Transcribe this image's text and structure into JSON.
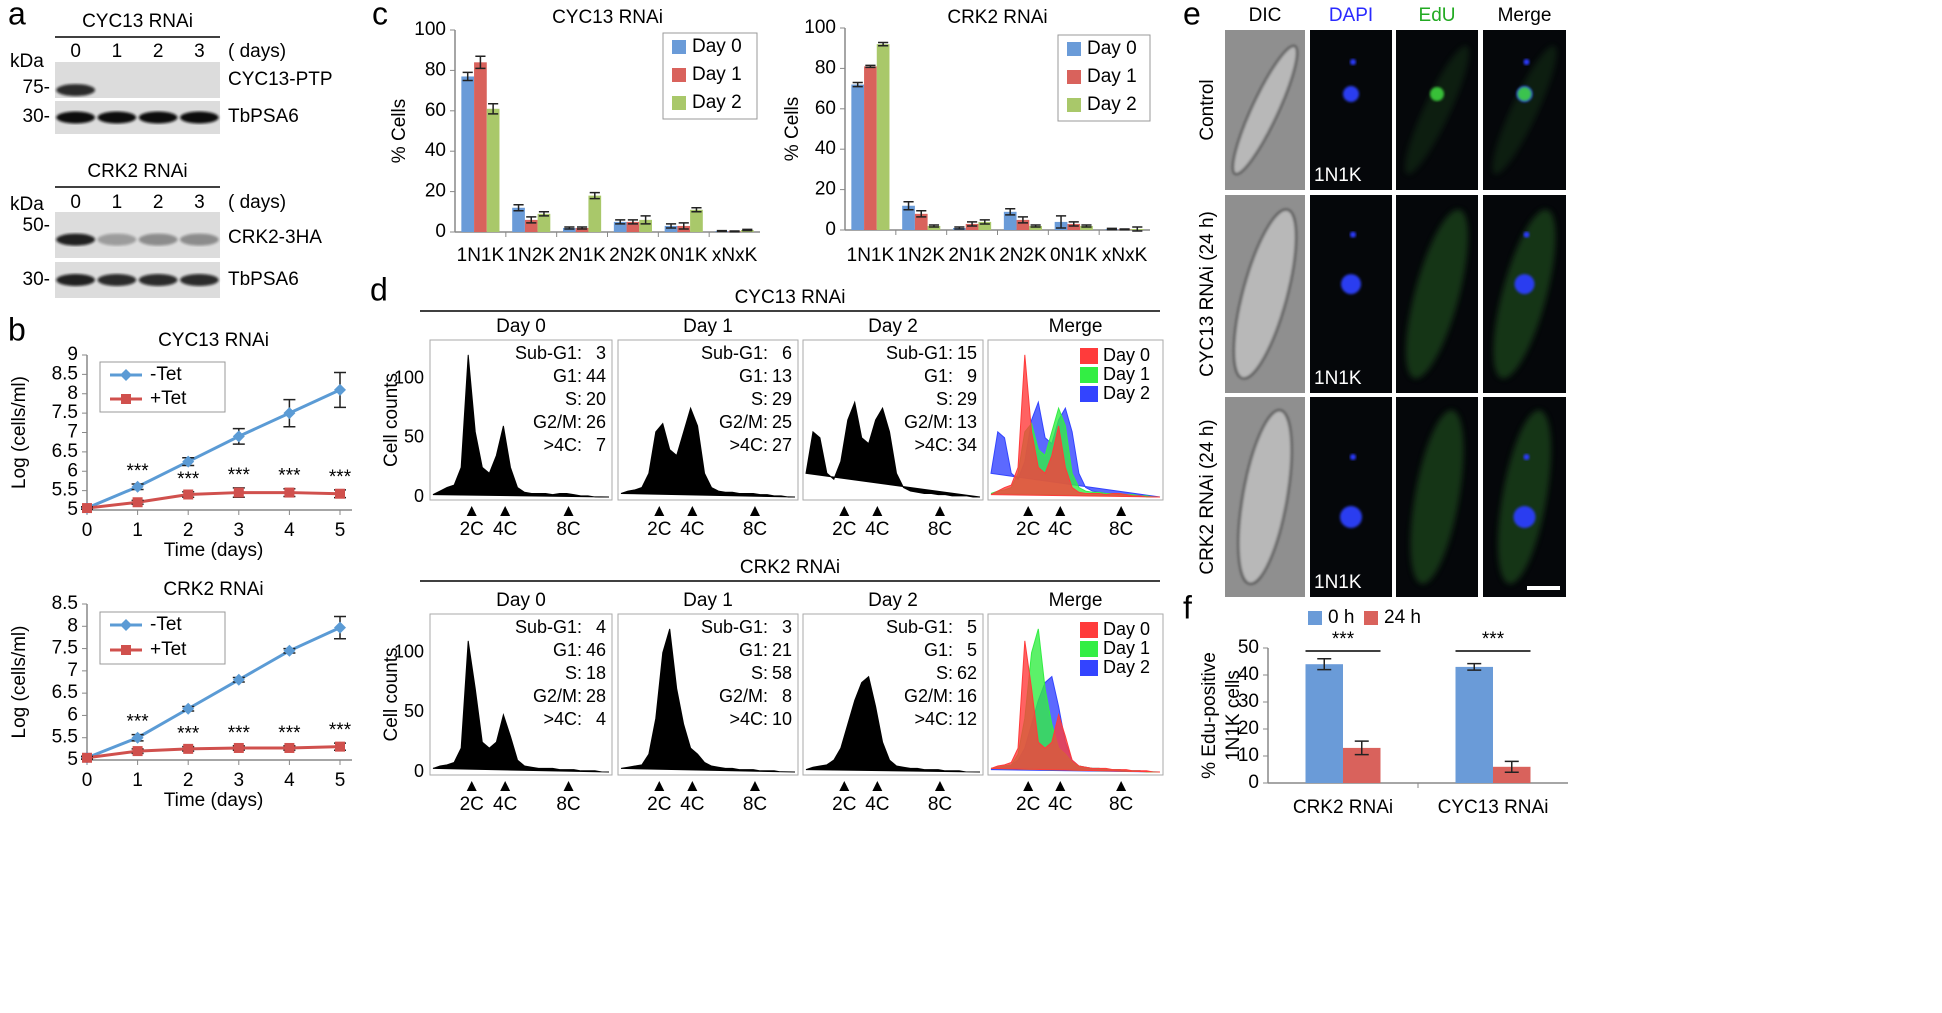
{
  "panel_letters": [
    "a",
    "b",
    "c",
    "d",
    "e",
    "f"
  ],
  "blots": [
    {
      "title": "CYC13 RNAi",
      "kda": "kDa",
      "days": [
        0,
        1,
        2,
        3
      ],
      "days_unit": "( days)",
      "rows": [
        {
          "marker": "75-",
          "label": "CYC13-PTP"
        },
        {
          "marker": "30-",
          "label": "TbPSA6"
        }
      ]
    },
    {
      "title": "CRK2 RNAi",
      "kda": "kDa",
      "days": [
        0,
        1,
        2,
        3
      ],
      "days_unit": "( days)",
      "rows": [
        {
          "marker": "50-",
          "label": "CRK2-3HA"
        },
        {
          "marker": "30-",
          "label": "TbPSA6"
        }
      ]
    }
  ],
  "micrographs": {
    "columns": [
      "DIC",
      "DAPI",
      "EdU",
      "Merge"
    ],
    "rows": [
      "Control",
      "CYC13 RNAi (24 h)",
      "CRK2 RNAi (24 h)"
    ],
    "cell_label": "1N1K"
  },
  "chart_data": [
    {
      "type": "line",
      "title": "CYC13 RNAi",
      "xlabel": "Time (days)",
      "ylabel": "Log (cells/ml)",
      "x": [
        0,
        1,
        2,
        3,
        4,
        5
      ],
      "xlim": [
        0,
        5
      ],
      "xticks": [
        0,
        1,
        2,
        3,
        4,
        5
      ],
      "ylim": [
        5,
        9
      ],
      "yticks": [
        5,
        5.5,
        6,
        6.5,
        7,
        7.5,
        8,
        8.5,
        9
      ],
      "legend": "upper left",
      "series": [
        {
          "name": "-Tet",
          "color": "#5b9bd5",
          "marker": "diamond",
          "values": [
            5.05,
            5.6,
            6.25,
            6.9,
            7.5,
            8.1
          ],
          "errors": [
            0.03,
            0.07,
            0.1,
            0.2,
            0.35,
            0.45
          ]
        },
        {
          "name": "+Tet",
          "color": "#d0504d",
          "marker": "square",
          "values": [
            5.05,
            5.2,
            5.4,
            5.45,
            5.45,
            5.42
          ],
          "errors": [
            0.03,
            0.05,
            0.07,
            0.12,
            0.1,
            0.1
          ]
        }
      ],
      "annotations": [
        {
          "x": 1,
          "text": "***"
        },
        {
          "x": 2,
          "text": "***"
        },
        {
          "x": 3,
          "text": "***"
        },
        {
          "x": 4,
          "text": "***"
        },
        {
          "x": 5,
          "text": "***"
        }
      ]
    },
    {
      "type": "line",
      "title": "CRK2 RNAi",
      "xlabel": "Time (days)",
      "ylabel": "Log (cells/ml)",
      "x": [
        0,
        1,
        2,
        3,
        4,
        5
      ],
      "xlim": [
        0,
        5
      ],
      "xticks": [
        0,
        1,
        2,
        3,
        4,
        5
      ],
      "ylim": [
        5,
        8.5
      ],
      "yticks": [
        5,
        5.5,
        6,
        6.5,
        7,
        7.5,
        8,
        8.5
      ],
      "legend": "upper left",
      "series": [
        {
          "name": "-Tet",
          "color": "#5b9bd5",
          "marker": "diamond",
          "values": [
            5.05,
            5.5,
            6.15,
            6.8,
            7.45,
            7.97
          ],
          "errors": [
            0.03,
            0.07,
            0.05,
            0.05,
            0.05,
            0.25
          ]
        },
        {
          "name": "+Tet",
          "color": "#d0504d",
          "marker": "square",
          "values": [
            5.05,
            5.2,
            5.25,
            5.27,
            5.27,
            5.3
          ],
          "errors": [
            0.03,
            0.05,
            0.05,
            0.05,
            0.05,
            0.08
          ]
        }
      ],
      "annotations": [
        {
          "x": 1,
          "text": "***"
        },
        {
          "x": 2,
          "text": "***"
        },
        {
          "x": 3,
          "text": "***"
        },
        {
          "x": 4,
          "text": "***"
        },
        {
          "x": 5,
          "text": "***"
        }
      ]
    },
    {
      "type": "bar",
      "title": "CYC13 RNAi",
      "ylabel": "% Cells",
      "categories": [
        "1N1K",
        "1N2K",
        "2N1K",
        "2N2K",
        "0N1K",
        "xNxK"
      ],
      "ylim": [
        0,
        100
      ],
      "yticks": [
        0,
        20,
        40,
        60,
        80,
        100
      ],
      "legend": "upper right",
      "series": [
        {
          "name": "Day 0",
          "color": "#6a9bd8",
          "values": [
            77,
            12,
            2,
            5,
            3,
            0.5
          ],
          "errors": [
            2,
            1.5,
            0.5,
            1,
            1,
            0.2
          ]
        },
        {
          "name": "Day 1",
          "color": "#d9625c",
          "values": [
            84,
            6,
            2,
            5,
            3,
            0.3
          ],
          "errors": [
            3,
            1.5,
            0.5,
            1,
            1.5,
            0.2
          ]
        },
        {
          "name": "Day 2",
          "color": "#a9c86a",
          "values": [
            61,
            9,
            18,
            6,
            11,
            1
          ],
          "errors": [
            2.5,
            1,
            1.5,
            2,
            1,
            0.3
          ]
        }
      ]
    },
    {
      "type": "bar",
      "title": "CRK2 RNAi",
      "ylabel": "% Cells",
      "categories": [
        "1N1K",
        "1N2K",
        "2N1K",
        "2N2K",
        "0N1K",
        "xNxK"
      ],
      "ylim": [
        0,
        100
      ],
      "yticks": [
        0,
        20,
        40,
        60,
        80,
        100
      ],
      "legend": "upper right",
      "series": [
        {
          "name": "Day 0",
          "color": "#6a9bd8",
          "values": [
            72,
            12,
            1,
            9,
            4,
            0.5
          ],
          "errors": [
            1,
            2,
            0.5,
            1.5,
            3,
            0.3
          ]
        },
        {
          "name": "Day 1",
          "color": "#d9625c",
          "values": [
            81,
            8,
            3,
            5,
            3,
            0.3
          ],
          "errors": [
            0.5,
            1.5,
            1,
            1.5,
            1,
            0.2
          ]
        },
        {
          "name": "Day 2",
          "color": "#a9c86a",
          "values": [
            92,
            2,
            4,
            2,
            2,
            0.5
          ],
          "errors": [
            0.8,
            0.5,
            1,
            0.5,
            0.5,
            1
          ]
        }
      ]
    },
    {
      "type": "area",
      "title": "CYC13 RNAi",
      "ylabel": "Cell counts",
      "x": [
        0,
        4,
        8,
        12,
        16,
        20,
        24,
        28,
        32,
        36,
        40,
        44,
        48,
        52,
        56,
        60,
        64,
        68,
        72,
        76,
        80,
        84,
        88,
        92,
        96,
        100
      ],
      "xlim": [
        0,
        100
      ],
      "xticks": [
        {
          "value": 22,
          "label": "2C"
        },
        {
          "value": 41,
          "label": "4C"
        },
        {
          "value": 77,
          "label": "8C"
        }
      ],
      "ylim": [
        0,
        130
      ],
      "yticks": [
        0,
        50,
        100
      ],
      "stat_labels": [
        "Sub-G1:",
        "G1:",
        "S:",
        "G2/M:",
        ">4C:"
      ],
      "panels": [
        {
          "title": "Day 0",
          "color": "#000000",
          "values": [
            2,
            5,
            8,
            10,
            25,
            120,
            55,
            25,
            20,
            35,
            60,
            25,
            8,
            4,
            3,
            3,
            3,
            2,
            3,
            3,
            2,
            1,
            1,
            0,
            0,
            0
          ],
          "stats": [
            3,
            44,
            20,
            26,
            7
          ]
        },
        {
          "title": "Day 1",
          "color": "#000000",
          "values": [
            3,
            5,
            6,
            8,
            20,
            55,
            62,
            40,
            35,
            55,
            75,
            60,
            20,
            8,
            5,
            4,
            4,
            3,
            3,
            3,
            2,
            2,
            1,
            1,
            0,
            0
          ],
          "stats": [
            6,
            13,
            29,
            25,
            27
          ]
        },
        {
          "title": "Day 2",
          "color": "#000000",
          "values": [
            20,
            55,
            50,
            20,
            15,
            30,
            65,
            80,
            50,
            45,
            65,
            75,
            55,
            20,
            8,
            5,
            4,
            3,
            3,
            2,
            2,
            1,
            1,
            1,
            0,
            0
          ],
          "stats": [
            15,
            9,
            29,
            13,
            34
          ]
        }
      ],
      "merge": {
        "title": "Merge",
        "series": [
          {
            "name": "Day 0",
            "color": "#ff3b3b"
          },
          {
            "name": "Day 1",
            "color": "#33ee44"
          },
          {
            "name": "Day 2",
            "color": "#3344ff"
          }
        ]
      }
    },
    {
      "type": "area",
      "title": "CRK2 RNAi",
      "ylabel": "Cell counts",
      "x": [
        0,
        4,
        8,
        12,
        16,
        20,
        24,
        28,
        32,
        36,
        40,
        44,
        48,
        52,
        56,
        60,
        64,
        68,
        72,
        76,
        80,
        84,
        88,
        92,
        96,
        100
      ],
      "xlim": [
        0,
        100
      ],
      "xticks": [
        {
          "value": 22,
          "label": "2C"
        },
        {
          "value": 41,
          "label": "4C"
        },
        {
          "value": 77,
          "label": "8C"
        }
      ],
      "ylim": [
        0,
        130
      ],
      "yticks": [
        0,
        50,
        100
      ],
      "stat_labels": [
        "Sub-G1:",
        "G1:",
        "S:",
        "G2/M:",
        ">4C:"
      ],
      "panels": [
        {
          "title": "Day 0",
          "color": "#000000",
          "values": [
            3,
            5,
            6,
            8,
            20,
            110,
            70,
            25,
            20,
            25,
            48,
            30,
            10,
            5,
            4,
            3,
            3,
            3,
            2,
            2,
            2,
            1,
            1,
            1,
            0,
            0
          ],
          "stats": [
            4,
            46,
            18,
            28,
            4
          ]
        },
        {
          "title": "Day 1",
          "color": "#000000",
          "values": [
            3,
            4,
            5,
            6,
            15,
            45,
            100,
            120,
            70,
            40,
            20,
            15,
            8,
            5,
            4,
            3,
            3,
            2,
            2,
            2,
            1,
            1,
            1,
            0,
            0,
            0
          ],
          "stats": [
            3,
            21,
            58,
            8,
            10
          ]
        },
        {
          "title": "Day 2",
          "color": "#000000",
          "values": [
            2,
            4,
            5,
            6,
            10,
            20,
            40,
            60,
            75,
            80,
            55,
            25,
            10,
            5,
            4,
            3,
            3,
            2,
            2,
            2,
            1,
            1,
            1,
            0,
            0,
            0
          ],
          "stats": [
            5,
            5,
            62,
            16,
            12
          ]
        }
      ],
      "merge": {
        "title": "Merge",
        "series": [
          {
            "name": "Day 0",
            "color": "#ff3b3b"
          },
          {
            "name": "Day 1",
            "color": "#33ee44"
          },
          {
            "name": "Day 2",
            "color": "#3344ff"
          }
        ]
      }
    },
    {
      "type": "bar",
      "ylabel": [
        "% Edu-positive",
        "1N1K cells"
      ],
      "categories": [
        "CRK2 RNAi",
        "CYC13 RNAi"
      ],
      "ylim": [
        0,
        50
      ],
      "yticks": [
        0,
        10,
        20,
        30,
        40,
        50
      ],
      "legend": "top",
      "series": [
        {
          "name": "0 h",
          "color": "#6a9bd8",
          "values": [
            44,
            43
          ],
          "errors": [
            2,
            1.2
          ]
        },
        {
          "name": "24 h",
          "color": "#d9625c",
          "values": [
            13,
            6
          ],
          "errors": [
            2.5,
            2
          ]
        }
      ],
      "annotations": [
        {
          "category": 0,
          "text": "***"
        },
        {
          "category": 1,
          "text": "***"
        }
      ]
    }
  ]
}
